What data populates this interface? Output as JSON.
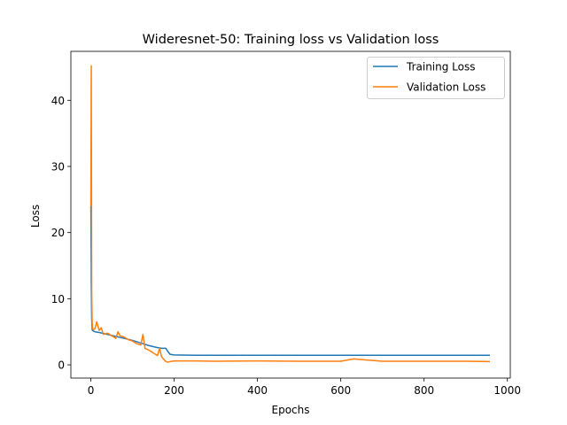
{
  "chart_data": {
    "type": "line",
    "title": "Wideresnet-50: Training loss vs Validation loss",
    "xlabel": "Epochs",
    "ylabel": "Loss",
    "xlim": [
      -48,
      1007
    ],
    "ylim": [
      -2.0,
      47.4
    ],
    "xticks": [
      0,
      200,
      400,
      600,
      800,
      1000
    ],
    "yticks": [
      0,
      10,
      20,
      30,
      40
    ],
    "legend_position": "top-right",
    "series": [
      {
        "name": "Training Loss",
        "color": "#1f77b4",
        "x": [
          0,
          1,
          2,
          3,
          4,
          6,
          10,
          20,
          40,
          60,
          80,
          100,
          120,
          140,
          160,
          170,
          180,
          185,
          190,
          200,
          250,
          300,
          400,
          500,
          600,
          700,
          800,
          900,
          958
        ],
        "y": [
          24.0,
          12.0,
          7.0,
          5.4,
          5.2,
          5.1,
          5.0,
          4.9,
          4.6,
          4.3,
          4.0,
          3.7,
          3.3,
          2.9,
          2.6,
          2.5,
          2.5,
          2.0,
          1.6,
          1.5,
          1.45,
          1.45,
          1.45,
          1.45,
          1.45,
          1.45,
          1.45,
          1.45,
          1.45
        ]
      },
      {
        "name": "Validation Loss",
        "color": "#ff7f0e",
        "x": [
          0,
          1,
          2,
          3,
          4,
          6,
          10,
          14,
          20,
          25,
          30,
          40,
          50,
          60,
          65,
          70,
          80,
          90,
          100,
          110,
          120,
          125,
          130,
          140,
          150,
          160,
          165,
          170,
          180,
          185,
          190,
          200,
          250,
          300,
          400,
          500,
          600,
          630,
          700,
          800,
          900,
          958
        ],
        "y": [
          24.0,
          45.2,
          11.5,
          6.5,
          5.5,
          5.3,
          5.5,
          6.5,
          5.2,
          5.6,
          4.6,
          4.8,
          4.4,
          4.0,
          5.0,
          4.4,
          4.2,
          3.8,
          3.6,
          3.2,
          3.0,
          4.6,
          2.5,
          2.2,
          1.8,
          1.4,
          2.5,
          1.2,
          0.5,
          0.4,
          0.5,
          0.6,
          0.6,
          0.55,
          0.6,
          0.55,
          0.55,
          0.9,
          0.55,
          0.55,
          0.55,
          0.5
        ]
      }
    ]
  }
}
